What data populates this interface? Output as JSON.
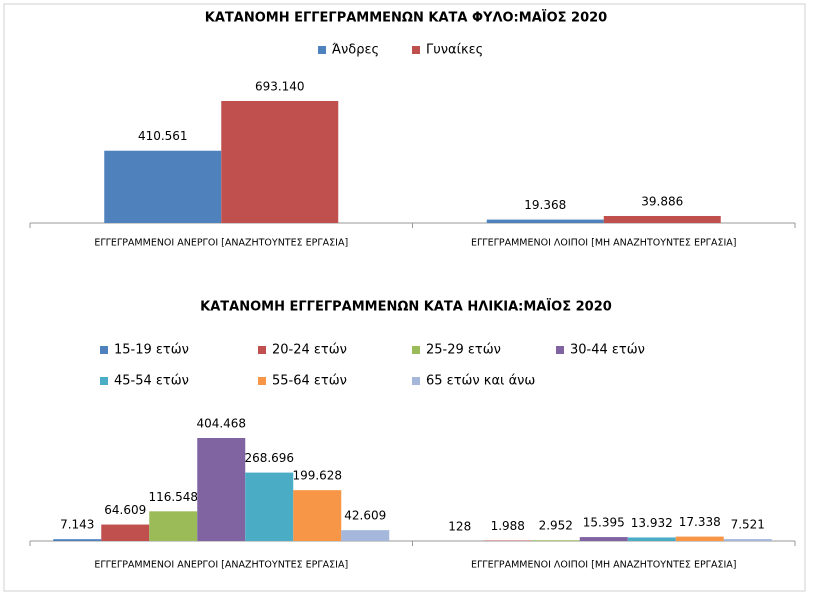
{
  "chart_data": [
    {
      "type": "bar",
      "title": "ΚΑΤΑΝΟΜΗ ΕΓΓΕΓΡΑΜΜΕΝΩΝ ΚΑΤΑ ΦΥΛΟ:ΜΑΪΟΣ  2020",
      "categories": [
        "ΕΓΓΕΓΡΑΜΜΕΝΟΙ ΑΝΕΡΓΟΙ [ΑΝΑΖΗΤΟΥΝΤΕΣ ΕΡΓΑΣΙΑ]",
        "ΕΓΓΕΓΡΑΜΜΕΝΟΙ ΛΟΙΠΟΙ [ΜΗ ΑΝΑΖΗΤΟΥΝΤΕΣ ΕΡΓΑΣΙΑ]"
      ],
      "series": [
        {
          "name": "Άνδρες",
          "color": "#4f81bd",
          "values": [
            410561,
            19368
          ],
          "value_labels": [
            "410.561",
            "19.368"
          ]
        },
        {
          "name": "Γυναίκες",
          "color": "#c0504d",
          "values": [
            693140,
            39886
          ],
          "value_labels": [
            "693.140",
            "39.886"
          ]
        }
      ]
    },
    {
      "type": "bar",
      "title": "ΚΑΤΑΝΟΜΗ ΕΓΓΕΓΡΑΜΜΕΝΩΝ ΚΑΤΑ ΗΛΙΚΙΑ:ΜΑΪΟΣ 2020",
      "categories": [
        "ΕΓΓΕΓΡΑΜΜΕΝΟΙ ΑΝΕΡΓΟΙ [ΑΝΑΖΗΤΟΥΝΤΕΣ ΕΡΓΑΣΙΑ]",
        "ΕΓΓΕΓΡΑΜΜΕΝΟΙ ΛΟΙΠΟΙ [ΜΗ ΑΝΑΖΗΤΟΥΝΤΕΣ ΕΡΓΑΣΙΑ]"
      ],
      "series": [
        {
          "name": "15-19 ετών",
          "color": "#4f81bd",
          "values": [
            7143,
            128
          ],
          "value_labels": [
            "7.143",
            "128"
          ]
        },
        {
          "name": "20-24 ετών",
          "color": "#c0504d",
          "values": [
            64609,
            1988
          ],
          "value_labels": [
            "64.609",
            "1.988"
          ]
        },
        {
          "name": "25-29 ετών",
          "color": "#9bbb59",
          "values": [
            116548,
            2952
          ],
          "value_labels": [
            "116.548",
            "2.952"
          ]
        },
        {
          "name": "30-44 ετών",
          "color": "#8064a2",
          "values": [
            404468,
            15395
          ],
          "value_labels": [
            "404.468",
            "15.395"
          ]
        },
        {
          "name": "45-54 ετών",
          "color": "#4bacc6",
          "values": [
            268696,
            13932
          ],
          "value_labels": [
            "268.696",
            "13.932"
          ]
        },
        {
          "name": "55-64 ετών",
          "color": "#f79646",
          "values": [
            199628,
            17338
          ],
          "value_labels": [
            "199.628",
            "17.338"
          ]
        },
        {
          "name": "65 ετών και άνω",
          "color": "#a5b8dc",
          "values": [
            42609,
            7521
          ],
          "value_labels": [
            "42.609",
            "7.521"
          ]
        }
      ]
    }
  ]
}
